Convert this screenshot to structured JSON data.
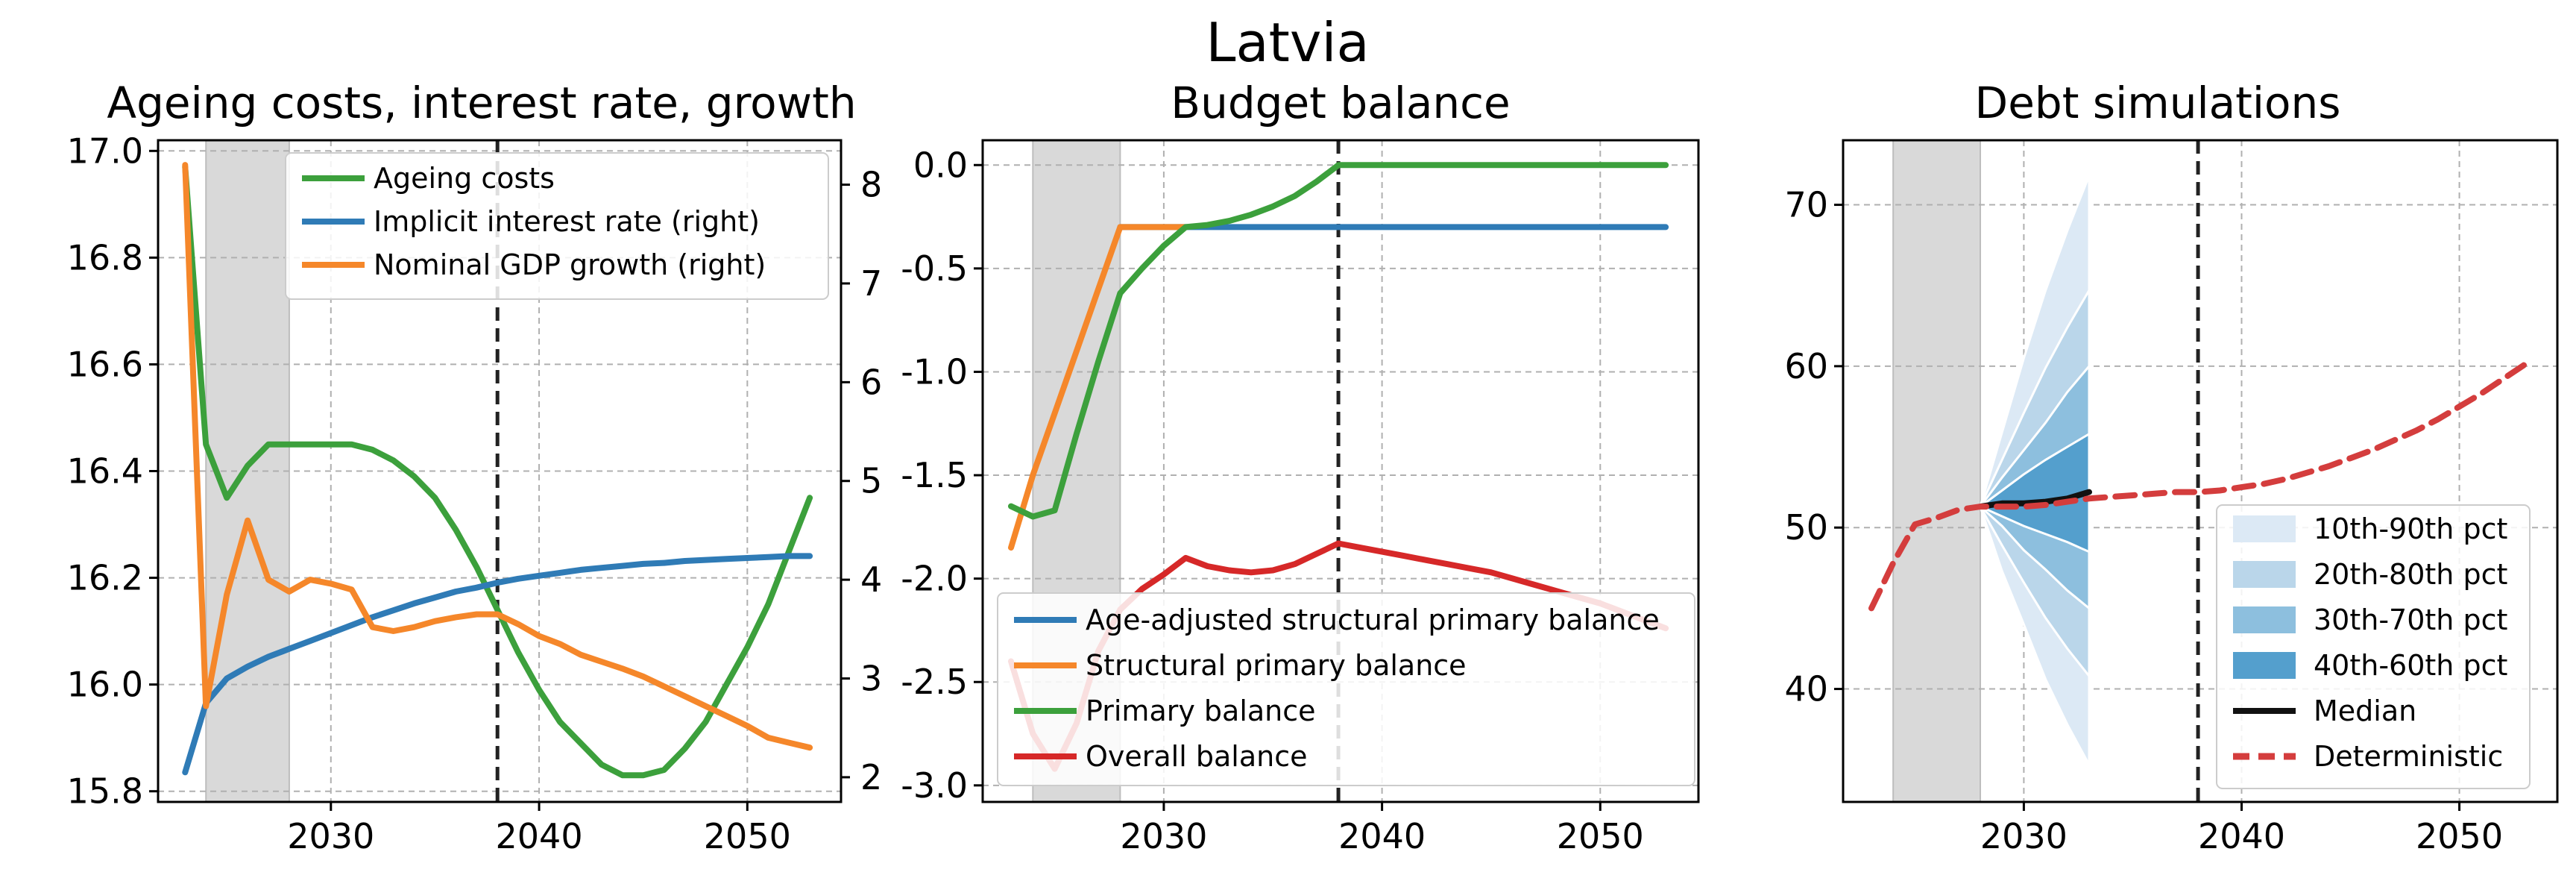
{
  "figure": {
    "title": "Latvia",
    "colors": {
      "green": "#3ca03c",
      "blue": "#2f7bb6",
      "orange": "#f5872a",
      "red": "#d62828",
      "black": "#111111",
      "fan_10_90": "#dce9f5",
      "fan_20_80": "#bad6ea",
      "fan_30_70": "#8dbfde",
      "fan_40_60": "#549fcd",
      "deterministic": "#d43d3d",
      "shade": "#d9d9d9"
    }
  },
  "chart_data": [
    {
      "type": "line",
      "title": "Ageing costs, interest rate, growth",
      "xlim": [
        2021.7,
        2054.5
      ],
      "ylim": [
        15.78,
        17.02
      ],
      "y2lim": [
        1.75,
        8.45
      ],
      "x_ticks": [
        2030,
        2040,
        2050
      ],
      "y_ticks": [
        15.8,
        16.0,
        16.2,
        16.4,
        16.6,
        16.8,
        17.0
      ],
      "y_tick_labels": [
        "15.8",
        "16.0",
        "16.2",
        "16.4",
        "16.6",
        "16.8",
        "17.0"
      ],
      "y2_ticks": [
        2,
        3,
        4,
        5,
        6,
        7,
        8
      ],
      "y2_tick_labels": [
        "2",
        "3",
        "4",
        "5",
        "6",
        "7",
        "8"
      ],
      "shaded_period": [
        2024,
        2028
      ],
      "vline_x": 2038,
      "legend_position": "upper right",
      "series": [
        {
          "name": "Ageing costs",
          "axis": "left",
          "color_key": "green",
          "x": [
            2023,
            2024,
            2025,
            2026,
            2027,
            2028,
            2029,
            2030,
            2031,
            2032,
            2033,
            2034,
            2035,
            2036,
            2037,
            2038,
            2039,
            2040,
            2041,
            2042,
            2043,
            2044,
            2045,
            2046,
            2047,
            2048,
            2049,
            2050,
            2051,
            2052,
            2053
          ],
          "y": [
            16.97,
            16.45,
            16.35,
            16.41,
            16.45,
            16.45,
            16.45,
            16.45,
            16.45,
            16.44,
            16.42,
            16.39,
            16.35,
            16.29,
            16.22,
            16.14,
            16.06,
            15.99,
            15.93,
            15.89,
            15.85,
            15.83,
            15.83,
            15.84,
            15.88,
            15.93,
            16.0,
            16.07,
            16.15,
            16.25,
            16.35
          ]
        },
        {
          "name": "Implicit interest rate (right)",
          "axis": "right",
          "color_key": "blue",
          "x": [
            2023,
            2024,
            2025,
            2026,
            2027,
            2028,
            2029,
            2030,
            2031,
            2032,
            2033,
            2034,
            2035,
            2036,
            2037,
            2038,
            2039,
            2040,
            2041,
            2042,
            2043,
            2044,
            2045,
            2046,
            2047,
            2048,
            2049,
            2050,
            2051,
            2052,
            2053
          ],
          "y": [
            2.05,
            2.75,
            3.0,
            3.12,
            3.22,
            3.3,
            3.38,
            3.46,
            3.54,
            3.62,
            3.69,
            3.76,
            3.82,
            3.88,
            3.92,
            3.97,
            4.01,
            4.04,
            4.07,
            4.1,
            4.12,
            4.14,
            4.16,
            4.17,
            4.19,
            4.2,
            4.21,
            4.22,
            4.23,
            4.24,
            4.24
          ]
        },
        {
          "name": "Nominal GDP growth (right)",
          "axis": "right",
          "color_key": "orange",
          "x": [
            2023,
            2024,
            2025,
            2026,
            2027,
            2028,
            2029,
            2030,
            2031,
            2032,
            2033,
            2034,
            2035,
            2036,
            2037,
            2038,
            2039,
            2040,
            2041,
            2042,
            2043,
            2044,
            2045,
            2046,
            2047,
            2048,
            2049,
            2050,
            2051,
            2052,
            2053
          ],
          "y": [
            8.2,
            2.72,
            3.85,
            4.6,
            4.0,
            3.88,
            4.0,
            3.96,
            3.9,
            3.52,
            3.48,
            3.52,
            3.58,
            3.62,
            3.65,
            3.65,
            3.55,
            3.43,
            3.35,
            3.24,
            3.17,
            3.1,
            3.02,
            2.92,
            2.82,
            2.72,
            2.62,
            2.52,
            2.4,
            2.35,
            2.3
          ]
        }
      ]
    },
    {
      "type": "line",
      "title": "Budget balance",
      "xlim": [
        2021.7,
        2054.5
      ],
      "ylim": [
        -3.08,
        0.12
      ],
      "x_ticks": [
        2030,
        2040,
        2050
      ],
      "y_ticks": [
        0.0,
        -0.5,
        -1.0,
        -1.5,
        -2.0,
        -2.5,
        -3.0
      ],
      "y_tick_labels": [
        "0.0",
        "-0.5",
        "-1.0",
        "-1.5",
        "-2.0",
        "-2.5",
        "-3.0"
      ],
      "shaded_period": [
        2024,
        2028
      ],
      "vline_x": 2038,
      "legend_position": "lower right",
      "series": [
        {
          "name": "Age-adjusted structural primary balance",
          "color_key": "blue",
          "x": [
            2028,
            2029,
            2030,
            2031,
            2032,
            2033,
            2034,
            2035,
            2036,
            2037,
            2038,
            2039,
            2040,
            2041,
            2042,
            2043,
            2044,
            2045,
            2046,
            2047,
            2048,
            2049,
            2050,
            2051,
            2052,
            2053
          ],
          "y": [
            -0.3,
            -0.3,
            -0.3,
            -0.3,
            -0.3,
            -0.3,
            -0.3,
            -0.3,
            -0.3,
            -0.3,
            -0.3,
            -0.3,
            -0.3,
            -0.3,
            -0.3,
            -0.3,
            -0.3,
            -0.3,
            -0.3,
            -0.3,
            -0.3,
            -0.3,
            -0.3,
            -0.3,
            -0.3,
            -0.3
          ]
        },
        {
          "name": "Structural primary balance",
          "color_key": "orange",
          "x": [
            2023,
            2024,
            2025,
            2026,
            2027,
            2028,
            2029,
            2030,
            2031
          ],
          "y": [
            -1.85,
            -1.5,
            -1.2,
            -0.9,
            -0.6,
            -0.3,
            -0.3,
            -0.3,
            -0.3
          ]
        },
        {
          "name": "Primary balance",
          "color_key": "green",
          "x": [
            2023,
            2024,
            2025,
            2026,
            2027,
            2028,
            2029,
            2030,
            2031,
            2032,
            2033,
            2034,
            2035,
            2036,
            2037,
            2038,
            2039,
            2040,
            2041,
            2042,
            2043,
            2044,
            2045,
            2046,
            2047,
            2048,
            2049,
            2050,
            2051,
            2052,
            2053
          ],
          "y": [
            -1.65,
            -1.7,
            -1.67,
            -1.3,
            -0.95,
            -0.62,
            -0.5,
            -0.39,
            -0.3,
            -0.29,
            -0.27,
            -0.24,
            -0.2,
            -0.15,
            -0.08,
            0.0,
            0.0,
            0.0,
            0.0,
            0.0,
            0.0,
            0.0,
            0.0,
            0.0,
            0.0,
            0.0,
            0.0,
            0.0,
            0.0,
            0.0,
            0.0
          ]
        },
        {
          "name": "Overall balance",
          "color_key": "red",
          "x": [
            2023,
            2024,
            2025,
            2026,
            2027,
            2028,
            2029,
            2030,
            2031,
            2032,
            2033,
            2034,
            2035,
            2036,
            2037,
            2038,
            2039,
            2040,
            2041,
            2042,
            2043,
            2044,
            2045,
            2046,
            2047,
            2048,
            2049,
            2050,
            2051,
            2052,
            2053
          ],
          "y": [
            -2.4,
            -2.75,
            -2.92,
            -2.7,
            -2.35,
            -2.15,
            -2.05,
            -1.98,
            -1.9,
            -1.94,
            -1.96,
            -1.97,
            -1.96,
            -1.93,
            -1.88,
            -1.83,
            -1.85,
            -1.87,
            -1.89,
            -1.91,
            -1.93,
            -1.95,
            -1.97,
            -2.0,
            -2.03,
            -2.06,
            -2.09,
            -2.12,
            -2.16,
            -2.2,
            -2.24
          ]
        }
      ]
    },
    {
      "type": "line",
      "title": "Debt simulations",
      "xlim": [
        2021.7,
        2054.5
      ],
      "ylim": [
        33,
        74
      ],
      "x_ticks": [
        2030,
        2040,
        2050
      ],
      "y_ticks": [
        40,
        50,
        60,
        70
      ],
      "y_tick_labels": [
        "40",
        "50",
        "60",
        "70"
      ],
      "shaded_period": [
        2024,
        2028
      ],
      "vline_x": 2038,
      "legend_position": "lower right",
      "fan": {
        "x": [
          2028,
          2029,
          2030,
          2031,
          2032,
          2033
        ],
        "bands": [
          {
            "name": "10th-90th pct",
            "color_key": "fan_10_90",
            "low": [
              51.3,
              47.3,
              44.0,
              40.6,
              37.8,
              35.3
            ],
            "high": [
              51.3,
              55.9,
              60.5,
              64.7,
              68.4,
              71.8
            ]
          },
          {
            "name": "20th-80th pct",
            "color_key": "fan_20_80",
            "low": [
              51.3,
              48.9,
              46.6,
              44.4,
              42.5,
              40.8
            ],
            "high": [
              51.3,
              54.2,
              57.1,
              59.9,
              62.4,
              64.7
            ]
          },
          {
            "name": "30th-70th pct",
            "color_key": "fan_30_70",
            "low": [
              51.3,
              50.1,
              48.6,
              47.4,
              46.1,
              45.0
            ],
            "high": [
              51.3,
              53.1,
              54.8,
              56.5,
              58.4,
              60.0
            ]
          },
          {
            "name": "40th-60th pct",
            "color_key": "fan_40_60",
            "low": [
              51.3,
              50.7,
              50.1,
              49.6,
              49.1,
              48.5
            ],
            "high": [
              51.3,
              52.3,
              53.3,
              54.2,
              55.0,
              55.8
            ]
          }
        ]
      },
      "series": [
        {
          "name": "Median",
          "color_key": "black",
          "style": "solid",
          "x": [
            2028,
            2029,
            2030,
            2031,
            2032,
            2033
          ],
          "y": [
            51.3,
            51.5,
            51.5,
            51.6,
            51.8,
            52.2
          ]
        },
        {
          "name": "Deterministic",
          "color_key": "deterministic",
          "style": "dashed",
          "x": [
            2023,
            2024,
            2025,
            2026,
            2027,
            2028,
            2029,
            2030,
            2031,
            2032,
            2033,
            2034,
            2035,
            2036,
            2037,
            2038,
            2039,
            2040,
            2041,
            2042,
            2043,
            2044,
            2045,
            2046,
            2047,
            2048,
            2049,
            2050,
            2051,
            2052,
            2053
          ],
          "y": [
            45.0,
            47.8,
            50.2,
            50.6,
            51.1,
            51.3,
            51.3,
            51.3,
            51.4,
            51.6,
            51.8,
            51.9,
            52.0,
            52.1,
            52.2,
            52.2,
            52.3,
            52.5,
            52.7,
            53.0,
            53.4,
            53.8,
            54.3,
            54.8,
            55.4,
            56.0,
            56.7,
            57.5,
            58.3,
            59.2,
            60.1
          ]
        }
      ]
    }
  ]
}
